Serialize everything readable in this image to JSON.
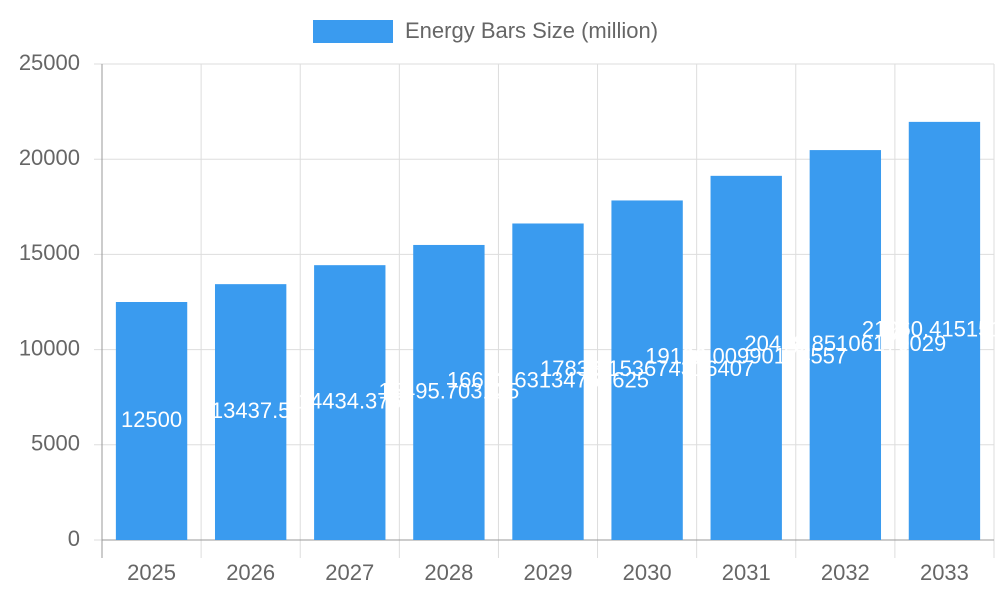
{
  "chart_data": {
    "type": "bar",
    "legend_label": "Energy Bars Size (million)",
    "categories": [
      "2025",
      "2026",
      "2027",
      "2028",
      "2029",
      "2030",
      "2031",
      "2032",
      "2033"
    ],
    "values": [
      12500,
      13437.5,
      14434.375,
      15495.703125,
      16623.63134765625,
      17833.153674316407,
      19126.00990174557,
      20478.85106170029,
      21960.41515145
    ],
    "color": "#3a9bef",
    "ylim": [
      0,
      25000
    ],
    "yticks": [
      0,
      5000,
      10000,
      15000,
      20000,
      25000
    ],
    "grid": true
  }
}
